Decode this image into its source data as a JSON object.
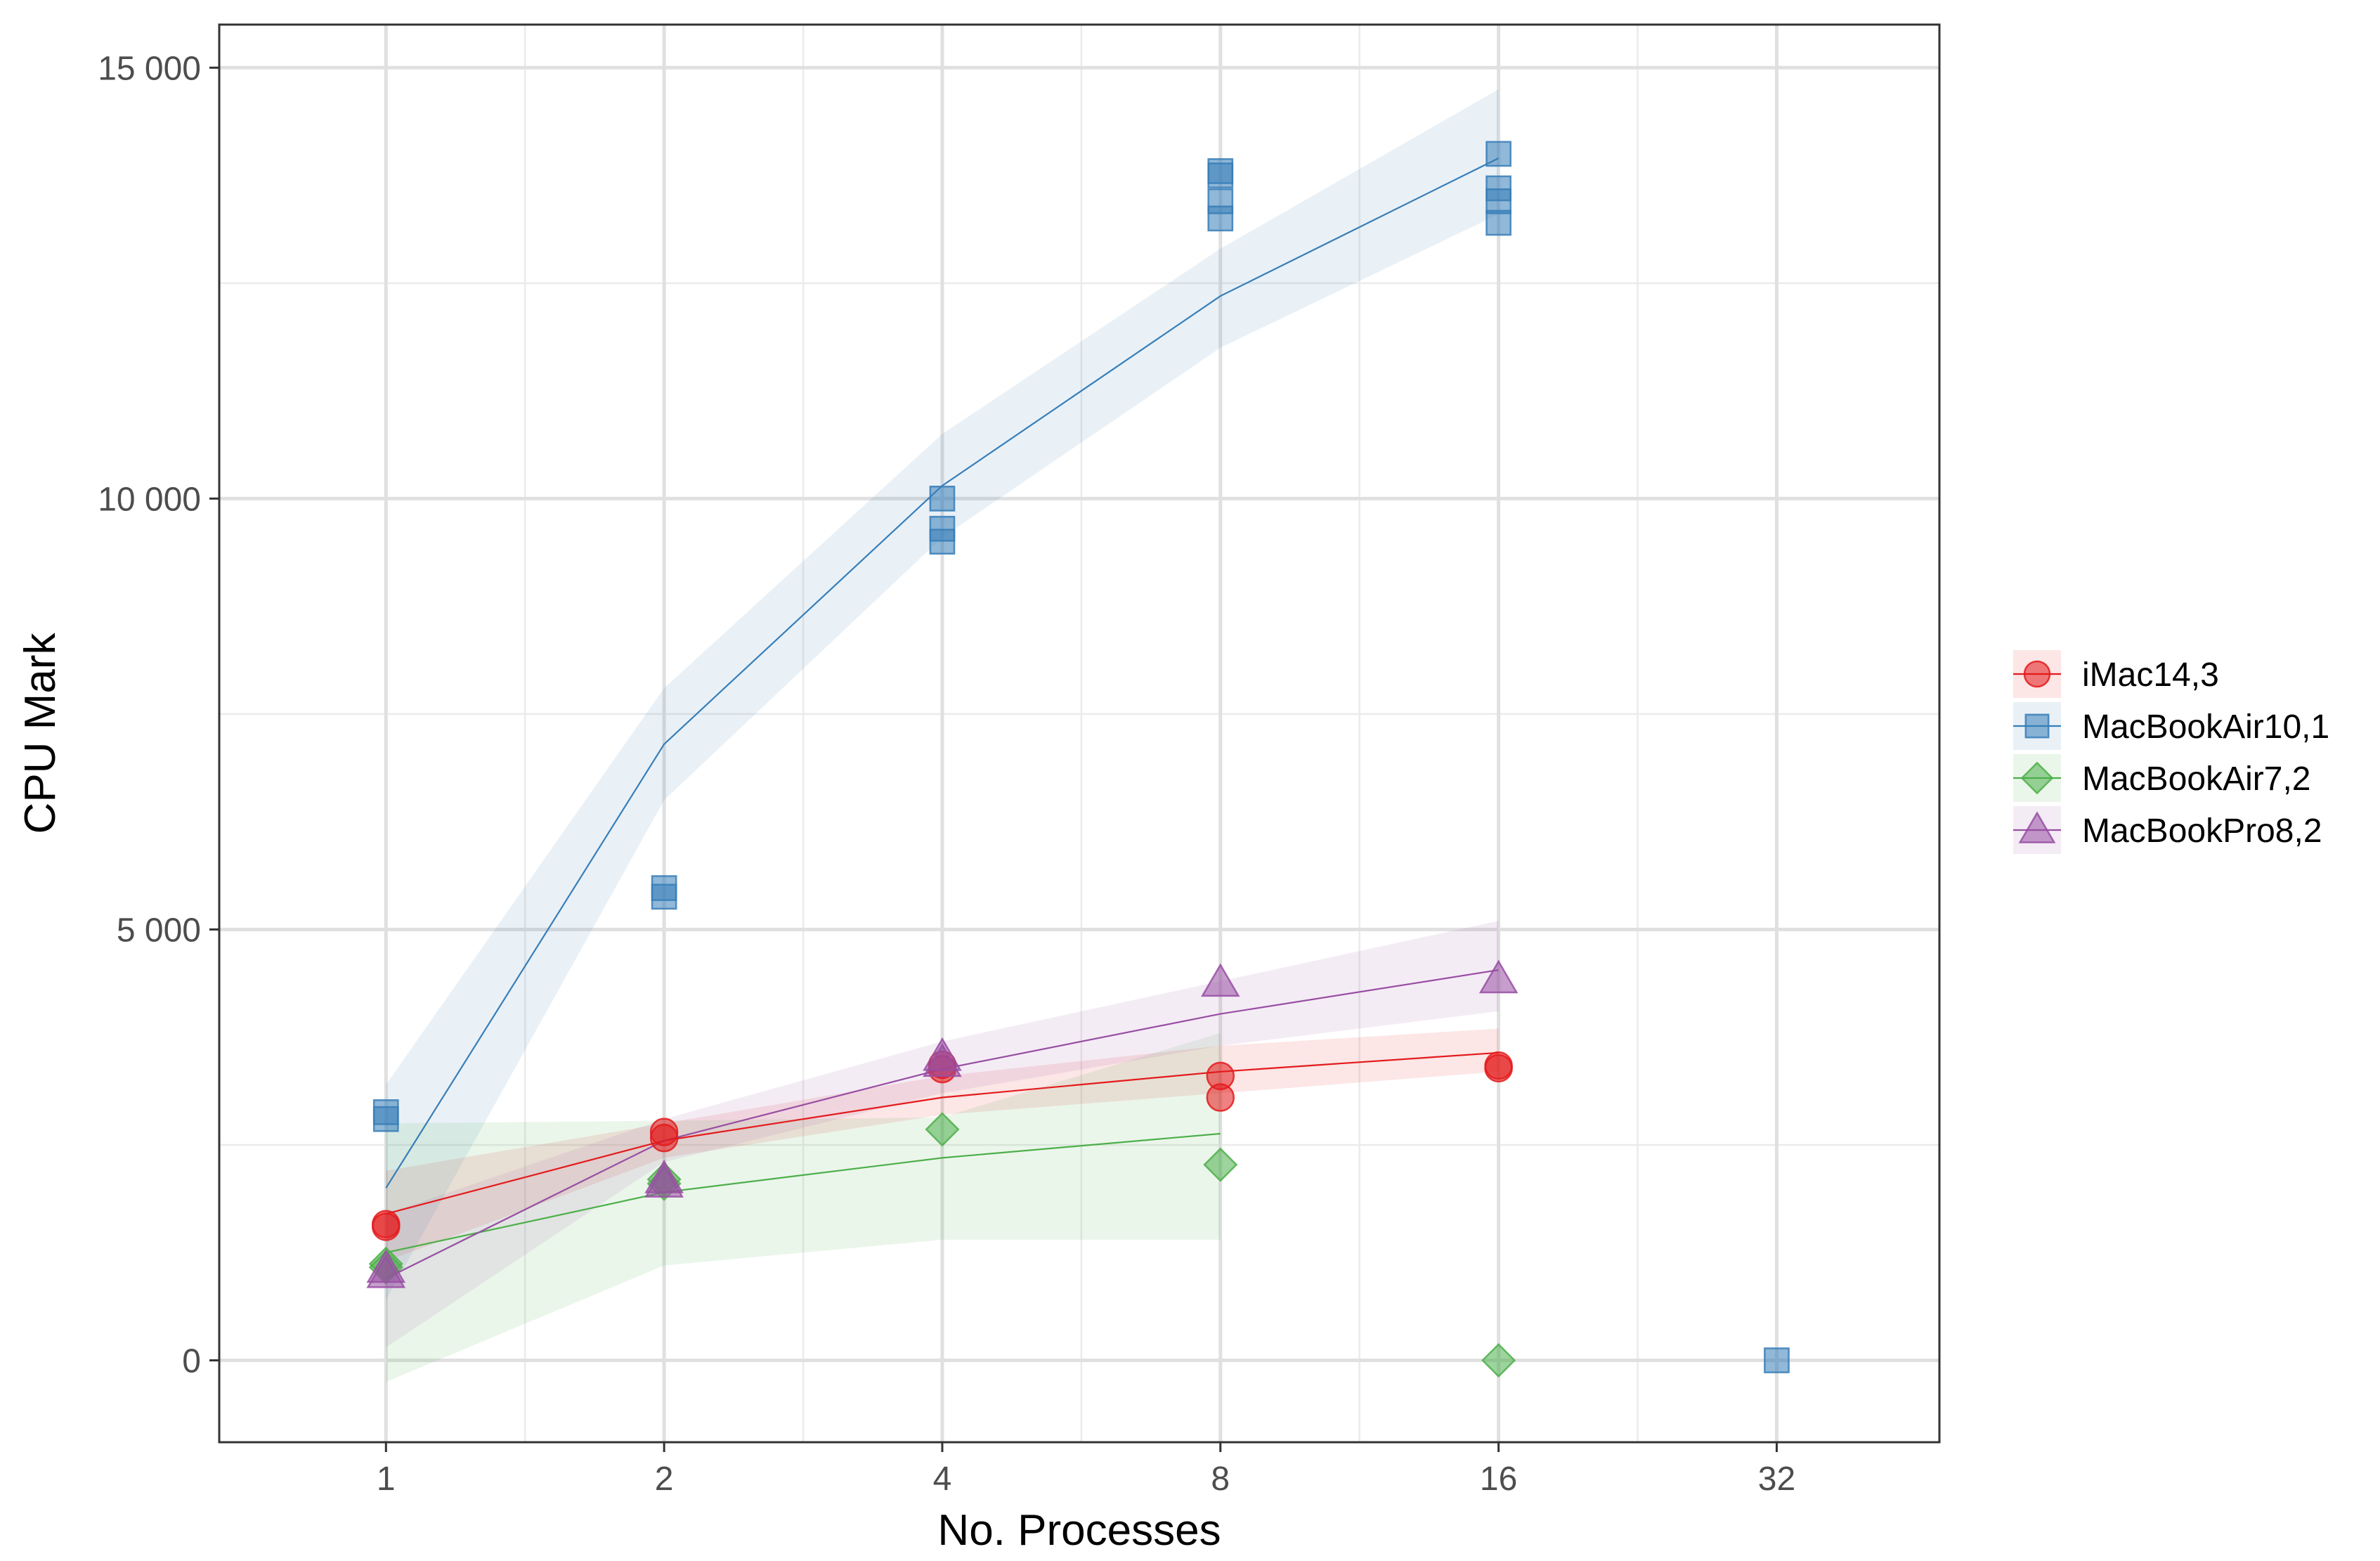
{
  "chart_data": {
    "type": "scatter",
    "title": "",
    "xlabel": "No. Processes",
    "ylabel": "CPU Mark",
    "x_scale": "log2",
    "x_ticks": [
      1,
      2,
      4,
      8,
      16,
      32
    ],
    "x_tick_labels": [
      "1",
      "2",
      "4",
      "8",
      "16",
      "32"
    ],
    "xlim": [
      0.66,
      48
    ],
    "y_ticks": [
      0,
      5000,
      10000,
      15000
    ],
    "y_tick_labels": [
      "0",
      "5 000",
      "10 000",
      "15 000"
    ],
    "ylim": [
      -950,
      15500
    ],
    "grid": true,
    "legend_position": "right",
    "series": [
      {
        "name": "iMac14,3",
        "color": "#E41A1C",
        "marker": "circle",
        "points": [
          [
            1,
            1550
          ],
          [
            1,
            1580
          ],
          [
            2,
            2580
          ],
          [
            2,
            2650
          ],
          [
            4,
            3380
          ],
          [
            4,
            3430
          ],
          [
            8,
            3050
          ],
          [
            8,
            3300
          ],
          [
            16,
            3390
          ],
          [
            16,
            3420
          ]
        ],
        "fit": [
          [
            1,
            1700
          ],
          [
            2,
            2550
          ],
          [
            4,
            3050
          ],
          [
            8,
            3350
          ],
          [
            16,
            3570
          ]
        ],
        "band_low": [
          1150,
          2350,
          2850,
          3100,
          3350
        ],
        "band_high": [
          2200,
          2750,
          3300,
          3650,
          3850
        ]
      },
      {
        "name": "MacBookAir10,1",
        "color": "#377EB8",
        "marker": "square",
        "points": [
          [
            1,
            2800
          ],
          [
            1,
            2880
          ],
          [
            2,
            5380
          ],
          [
            2,
            5480
          ],
          [
            4,
            9500
          ],
          [
            4,
            9650
          ],
          [
            4,
            10000
          ],
          [
            8,
            13250
          ],
          [
            8,
            13450
          ],
          [
            8,
            13750
          ],
          [
            8,
            13800
          ],
          [
            16,
            13200
          ],
          [
            16,
            13450
          ],
          [
            16,
            13600
          ],
          [
            16,
            14000
          ],
          [
            32,
            0
          ]
        ],
        "fit": [
          [
            1,
            2000
          ],
          [
            2,
            7150
          ],
          [
            4,
            10150
          ],
          [
            8,
            12350
          ],
          [
            16,
            13950
          ]
        ],
        "band_low": [
          700,
          6500,
          9550,
          11750,
          13300
        ],
        "band_high": [
          3200,
          7800,
          10750,
          12900,
          14750
        ]
      },
      {
        "name": "MacBookAir7,2",
        "color": "#4DAF4A",
        "marker": "diamond",
        "points": [
          [
            1,
            1080
          ],
          [
            1,
            1120
          ],
          [
            2,
            2050
          ],
          [
            2,
            2100
          ],
          [
            4,
            2680
          ],
          [
            8,
            2270
          ],
          [
            16,
            0
          ]
        ],
        "fit": [
          [
            1,
            1250
          ],
          [
            2,
            1950
          ],
          [
            4,
            2350
          ],
          [
            8,
            2630
          ]
        ],
        "band_low": [
          -250,
          1100,
          1400,
          1400
        ],
        "band_high": [
          2750,
          2780,
          2820,
          3800
        ]
      },
      {
        "name": "MacBookPro8,2",
        "color": "#984EA3",
        "marker": "triangle",
        "points": [
          [
            1,
            1000
          ],
          [
            1,
            1060
          ],
          [
            2,
            2050
          ],
          [
            2,
            2100
          ],
          [
            4,
            3450
          ],
          [
            4,
            3520
          ],
          [
            8,
            4380
          ],
          [
            16,
            4420
          ]
        ],
        "fit": [
          [
            1,
            950
          ],
          [
            2,
            2550
          ],
          [
            4,
            3380
          ],
          [
            8,
            4020
          ],
          [
            16,
            4530
          ]
        ],
        "band_low": [
          150,
          2300,
          3100,
          3650,
          4050
        ],
        "band_high": [
          1700,
          2800,
          3700,
          4400,
          5100
        ]
      }
    ]
  }
}
